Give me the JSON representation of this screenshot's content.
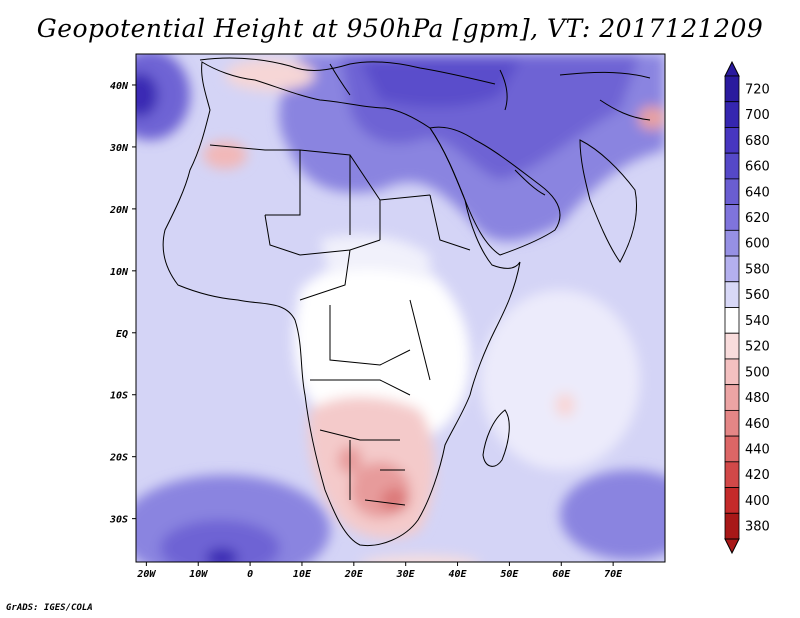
{
  "title": "Geopotential Height at 950hPa [gpm], VT: 2017121209",
  "credit": "GrADS: IGES/COLA",
  "map": {
    "lon_range": [
      -22,
      80
    ],
    "lat_range": [
      -37,
      45
    ],
    "lat_labels": [
      "40N",
      "30N",
      "20N",
      "10N",
      "EQ",
      "10S",
      "20S",
      "30S"
    ],
    "lon_labels": [
      "20W",
      "10W",
      "0",
      "10E",
      "20E",
      "30E",
      "40E",
      "50E",
      "60E",
      "70E"
    ]
  },
  "colorbar": {
    "levels": [
      "720",
      "700",
      "680",
      "660",
      "640",
      "620",
      "600",
      "580",
      "560",
      "540",
      "520",
      "500",
      "480",
      "460",
      "440",
      "420",
      "400",
      "380"
    ],
    "colors": [
      "#2a1a9e",
      "#3526b0",
      "#4736c0",
      "#5548c8",
      "#6a5ed2",
      "#7f74dc",
      "#9690e4",
      "#b4b0ee",
      "#d8d8f7",
      "#ffffff",
      "#f9dcdc",
      "#f3c0c0",
      "#eca4a4",
      "#e48686",
      "#dc6666",
      "#d24848",
      "#c42a2a",
      "#a81818"
    ]
  }
}
